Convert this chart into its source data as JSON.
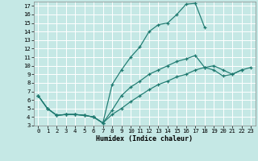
{
  "xlabel": "Humidex (Indice chaleur)",
  "xlim": [
    -0.5,
    23.5
  ],
  "ylim": [
    3,
    17.5
  ],
  "xticks": [
    0,
    1,
    2,
    3,
    4,
    5,
    6,
    7,
    8,
    9,
    10,
    11,
    12,
    13,
    14,
    15,
    16,
    17,
    18,
    19,
    20,
    21,
    22,
    23
  ],
  "yticks": [
    3,
    4,
    5,
    6,
    7,
    8,
    9,
    10,
    11,
    12,
    13,
    14,
    15,
    16,
    17
  ],
  "background_color": "#c5e8e5",
  "grid_color": "#b0d8d4",
  "line_color": "#1e7a70",
  "line1_x": [
    0,
    1,
    2,
    3,
    4,
    5,
    6,
    7,
    8,
    9,
    10,
    11,
    12,
    13,
    14,
    15,
    16,
    17,
    18
  ],
  "line1_y": [
    6.5,
    5.0,
    4.2,
    4.3,
    4.3,
    4.2,
    4.0,
    3.3,
    7.8,
    9.5,
    11.0,
    12.2,
    14.0,
    14.8,
    15.0,
    16.0,
    17.2,
    17.3,
    14.5
  ],
  "line2_x": [
    0,
    1,
    2,
    3,
    4,
    5,
    6,
    7,
    8,
    9,
    10,
    11,
    12,
    13,
    14,
    15,
    16,
    17,
    18,
    19,
    20,
    21,
    22
  ],
  "line2_y": [
    6.5,
    5.0,
    4.2,
    4.3,
    4.3,
    4.2,
    4.0,
    3.3,
    4.8,
    6.5,
    7.5,
    8.2,
    9.0,
    9.5,
    10.0,
    10.5,
    10.8,
    11.2,
    9.8,
    9.5,
    8.8,
    9.0,
    9.5
  ],
  "line3_x": [
    0,
    1,
    2,
    3,
    4,
    5,
    6,
    7,
    8,
    9,
    10,
    11,
    12,
    13,
    14,
    15,
    16,
    17,
    18,
    19,
    20,
    21,
    22,
    23
  ],
  "line3_y": [
    6.5,
    5.0,
    4.2,
    4.3,
    4.3,
    4.2,
    4.0,
    3.3,
    4.3,
    5.0,
    5.8,
    6.5,
    7.2,
    7.8,
    8.2,
    8.7,
    9.0,
    9.5,
    9.8,
    10.0,
    9.5,
    9.0,
    9.5,
    9.8
  ]
}
